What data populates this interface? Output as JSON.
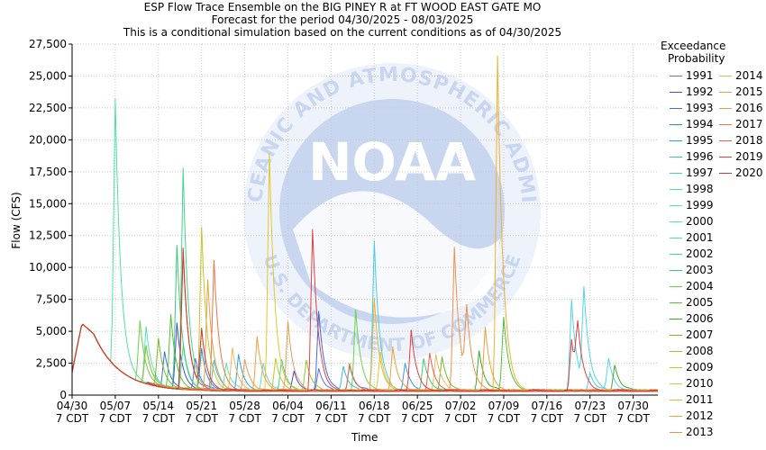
{
  "header": {
    "title_line1": "ESP Flow Trace Ensemble on the BIG PINEY R at FT WOOD EAST GATE MO",
    "title_line2": "Forecast for the period 04/30/2025 - 08/03/2025",
    "title_line3": "This is a conditional simulation based on the current conditions as of 04/30/2025"
  },
  "watermark": {
    "logo_text": "NOAA",
    "ring_top": "NATIONAL OCEANIC AND ATMOSPHERIC ADMINISTRATION",
    "ring_bottom": "U.S. DEPARTMENT OF COMMERCE",
    "color": "#c8d6f0"
  },
  "chart_data": {
    "type": "line",
    "xlabel": "Time",
    "ylabel": "Flow (CFS)",
    "ylim": [
      0,
      27500
    ],
    "grid": true,
    "legend_placement": "right",
    "legend_title_line1": "Exceedance",
    "legend_title_line2": "Probability",
    "x_tick_labels": [
      {
        "date": "04/30",
        "sub": "7 CDT"
      },
      {
        "date": "05/07",
        "sub": "7 CDT"
      },
      {
        "date": "05/14",
        "sub": "7 CDT"
      },
      {
        "date": "05/21",
        "sub": "7 CDT"
      },
      {
        "date": "05/28",
        "sub": "7 CDT"
      },
      {
        "date": "06/04",
        "sub": "7 CDT"
      },
      {
        "date": "06/11",
        "sub": "7 CDT"
      },
      {
        "date": "06/18",
        "sub": "7 CDT"
      },
      {
        "date": "06/25",
        "sub": "7 CDT"
      },
      {
        "date": "07/02",
        "sub": "7 CDT"
      },
      {
        "date": "07/09",
        "sub": "7 CDT"
      },
      {
        "date": "07/16",
        "sub": "7 CDT"
      },
      {
        "date": "07/23",
        "sub": "7 CDT"
      },
      {
        "date": "07/30",
        "sub": "7 CDT"
      }
    ],
    "y_tick_labels": [
      "0",
      "2,500",
      "5,000",
      "7,500",
      "10,000",
      "12,500",
      "15,000",
      "17,500",
      "20,000",
      "22,500",
      "25,000",
      "27,500"
    ],
    "series": [
      {
        "name": "1991",
        "color": "#6a6ad6",
        "peaks": [
          [
            20,
            2500
          ],
          [
            40,
            1800
          ]
        ]
      },
      {
        "name": "1992",
        "color": "#4a4ac8",
        "peaks": [
          [
            17,
            5200
          ],
          [
            36,
            1500
          ]
        ]
      },
      {
        "name": "1993",
        "color": "#3a6ee0",
        "peaks": [
          [
            15,
            2800
          ],
          [
            40,
            6200
          ]
        ]
      },
      {
        "name": "1994",
        "color": "#2f86e0",
        "peaks": [
          [
            21,
            3300
          ],
          [
            45,
            2000
          ]
        ]
      },
      {
        "name": "1995",
        "color": "#2aa0e0",
        "peaks": [
          [
            27,
            2900
          ],
          [
            54,
            2200
          ]
        ]
      },
      {
        "name": "1996",
        "color": "#3cb8e6",
        "peaks": [
          [
            23,
            2400
          ],
          [
            44,
            1900
          ]
        ]
      },
      {
        "name": "1997",
        "color": "#48cce8",
        "peaks": [
          [
            49,
            11800
          ],
          [
            84,
            1400
          ]
        ]
      },
      {
        "name": "1998",
        "color": "#4fd8e0",
        "peaks": [
          [
            81,
            7200
          ],
          [
            83,
            7400
          ],
          [
            87,
            2500
          ]
        ]
      },
      {
        "name": "1999",
        "color": "#56ddd0",
        "peaks": [
          [
            12,
            3000
          ],
          [
            31,
            2200
          ]
        ]
      },
      {
        "name": "2000",
        "color": "#5ae0c0",
        "peaks": [
          [
            12,
            4500
          ],
          [
            25,
            2200
          ]
        ]
      },
      {
        "name": "2001",
        "color": "#50e0a8",
        "peaks": [
          [
            7,
            21000
          ],
          [
            18,
            3300
          ]
        ]
      },
      {
        "name": "2002",
        "color": "#40d88a",
        "peaks": [
          [
            18,
            17300
          ],
          [
            34,
            2500
          ]
        ]
      },
      {
        "name": "2003",
        "color": "#3ccc70",
        "peaks": [
          [
            17,
            11200
          ],
          [
            57,
            2500
          ]
        ]
      },
      {
        "name": "2004",
        "color": "#6ad24a",
        "peaks": [
          [
            11,
            4800
          ],
          [
            46,
            6400
          ]
        ]
      },
      {
        "name": "2005",
        "color": "#52c03a",
        "peaks": [
          [
            16,
            5800
          ],
          [
            70,
            5700
          ]
        ]
      },
      {
        "name": "2006",
        "color": "#3eaa2e",
        "peaks": [
          [
            66,
            3200
          ],
          [
            88,
            2000
          ]
        ]
      },
      {
        "name": "2007",
        "color": "#78b82a",
        "peaks": [
          [
            14,
            3800
          ],
          [
            60,
            2600
          ]
        ]
      },
      {
        "name": "2008",
        "color": "#a2c028",
        "peaks": [
          [
            12,
            3000
          ],
          [
            38,
            2400
          ]
        ]
      },
      {
        "name": "2009",
        "color": "#c8c428",
        "peaks": [
          [
            21,
            12800
          ],
          [
            33,
            2600
          ]
        ]
      },
      {
        "name": "2010",
        "color": "#e0c830",
        "peaks": [
          [
            32,
            18700
          ],
          [
            50,
            3000
          ]
        ]
      },
      {
        "name": "2011",
        "color": "#f0b030",
        "peaks": [
          [
            69,
            26300
          ],
          [
            49,
            7200
          ]
        ]
      },
      {
        "name": "2012",
        "color": "#eea040",
        "peaks": [
          [
            30,
            4300
          ],
          [
            52,
            3500
          ]
        ]
      },
      {
        "name": "2013",
        "color": "#f09048",
        "peaks": [
          [
            62,
            11300
          ],
          [
            64,
            5600
          ]
        ]
      },
      {
        "name": "2014",
        "color": "#e8b860",
        "peaks": [
          [
            26,
            3400
          ],
          [
            59,
            2900
          ]
        ]
      },
      {
        "name": "2015",
        "color": "#e8a040",
        "peaks": [
          [
            22,
            8700
          ],
          [
            67,
            5000
          ]
        ]
      },
      {
        "name": "2016",
        "color": "#e89a50",
        "peaks": [
          [
            35,
            5500
          ],
          [
            28,
            2500
          ]
        ]
      },
      {
        "name": "2017",
        "color": "#e87840",
        "peaks": [
          [
            23,
            10200
          ],
          [
            45,
            2200
          ]
        ]
      },
      {
        "name": "2018",
        "color": "#e86050",
        "peaks": [
          [
            18,
            10800
          ],
          [
            58,
            3000
          ]
        ]
      },
      {
        "name": "2019",
        "color": "#e04040",
        "peaks": [
          [
            39,
            12700
          ],
          [
            55,
            4800
          ],
          [
            81,
            4000
          ],
          [
            82,
            4200
          ]
        ]
      },
      {
        "name": "2020",
        "color": "#c83a2a",
        "peaks": [
          [
            18,
            11000
          ],
          [
            21,
            4500
          ]
        ]
      }
    ]
  }
}
